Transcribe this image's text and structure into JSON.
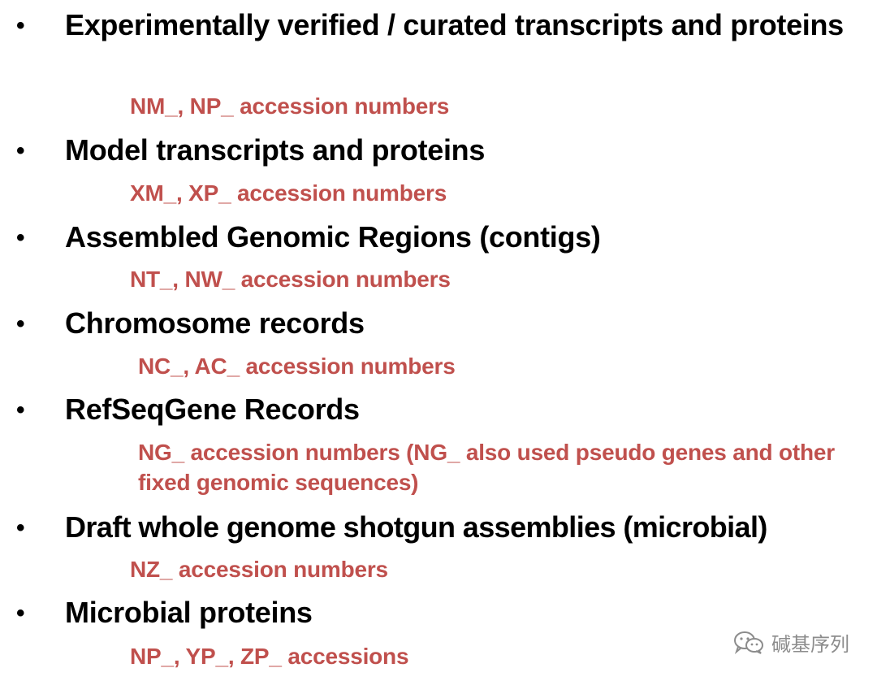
{
  "items": [
    {
      "title": "Experimentally verified / curated transcripts and proteins",
      "sub": "NM_, NP_ accession numbers"
    },
    {
      "title": "Model transcripts and proteins",
      "sub": "XM_, XP_ accession numbers"
    },
    {
      "title": "Assembled Genomic Regions (contigs)",
      "sub": "NT_, NW_ accession numbers"
    },
    {
      "title": "Chromosome records",
      "sub": "NC_, AC_ accession numbers"
    },
    {
      "title": "RefSeqGene Records",
      "sub": "NG_ accession numbers (NG_ also used pseudo genes and other fixed genomic sequences)"
    },
    {
      "title": "Draft whole genome shotgun assemblies (microbial)",
      "sub": "NZ_ accession numbers"
    },
    {
      "title": "Microbial proteins",
      "sub": "NP_, YP_, ZP_ accessions"
    }
  ],
  "bullet_symbol": "•",
  "watermark": {
    "text": "碱基序列",
    "icon": "wechat-icon"
  },
  "colors": {
    "title": "#000000",
    "sub": "#c0504d",
    "watermark": "#8c8c8c"
  }
}
